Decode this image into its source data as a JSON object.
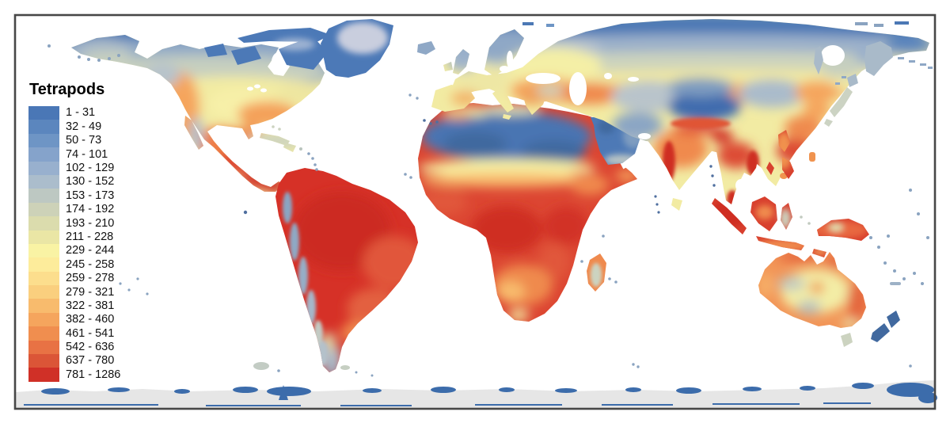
{
  "figure": {
    "title": "Tetrapods",
    "type": "choropleth world map of species richness",
    "ocean_color": "#FFFFFF",
    "frame_color": "#474747",
    "antarctica_color": "#E6E6E6"
  },
  "legend": {
    "title": "Tetrapods",
    "classes": [
      {
        "label": "1 - 31",
        "min": 1,
        "max": 31,
        "color": "#4A77B6"
      },
      {
        "label": "32 - 49",
        "min": 32,
        "max": 49,
        "color": "#5B86BE"
      },
      {
        "label": "50 - 73",
        "min": 50,
        "max": 73,
        "color": "#6E95C5"
      },
      {
        "label": "74 - 101",
        "min": 74,
        "max": 101,
        "color": "#85A3CB"
      },
      {
        "label": "102 - 129",
        "min": 102,
        "max": 129,
        "color": "#98B0CE"
      },
      {
        "label": "130 - 152",
        "min": 130,
        "max": 152,
        "color": "#ABBDCC"
      },
      {
        "label": "153 - 173",
        "min": 153,
        "max": 173,
        "color": "#BDC8C2"
      },
      {
        "label": "174 - 192",
        "min": 174,
        "max": 192,
        "color": "#CDD2B8"
      },
      {
        "label": "193 - 210",
        "min": 193,
        "max": 210,
        "color": "#DBDCAD"
      },
      {
        "label": "211 - 228",
        "min": 211,
        "max": 228,
        "color": "#EAE6A5"
      },
      {
        "label": "229 - 244",
        "min": 229,
        "max": 244,
        "color": "#F9F3A4"
      },
      {
        "label": "245 - 258",
        "min": 245,
        "max": 258,
        "color": "#FDEC9B"
      },
      {
        "label": "259 - 278",
        "min": 259,
        "max": 278,
        "color": "#FCDE8D"
      },
      {
        "label": "279 - 321",
        "min": 279,
        "max": 321,
        "color": "#FACF7E"
      },
      {
        "label": "322 - 381",
        "min": 322,
        "max": 381,
        "color": "#F8BB6D"
      },
      {
        "label": "382 - 460",
        "min": 382,
        "max": 460,
        "color": "#F5A55D"
      },
      {
        "label": "461 - 541",
        "min": 461,
        "max": 541,
        "color": "#F08E4F"
      },
      {
        "label": "542 - 636",
        "min": 542,
        "max": 636,
        "color": "#E87244"
      },
      {
        "label": "637 - 780",
        "min": 637,
        "max": 780,
        "color": "#DB5537"
      },
      {
        "label": "781 - 1286",
        "min": 781,
        "max": 1286,
        "color": "#D03027"
      }
    ]
  },
  "chart_data": {
    "type": "heatmap",
    "subtype": "choropleth_world_map",
    "title": "Tetrapods",
    "value_range": [
      1,
      1286
    ],
    "n_classes": 20,
    "class_breaks": [
      1,
      31,
      49,
      73,
      101,
      129,
      152,
      173,
      192,
      210,
      228,
      244,
      258,
      278,
      321,
      381,
      460,
      541,
      636,
      780,
      1286
    ],
    "palette_low_to_high": [
      "#4A77B6",
      "#5B86BE",
      "#6E95C5",
      "#85A3CB",
      "#98B0CE",
      "#ABBDCC",
      "#BDC8C2",
      "#CDD2B8",
      "#DBDCAD",
      "#EAE6A5",
      "#F9F3A4",
      "#FDEC9B",
      "#FCDE8D",
      "#FACF7E",
      "#F8BB6D",
      "#F5A55D",
      "#F08E4F",
      "#E87244",
      "#DB5537",
      "#D03027"
    ],
    "legend_position": "left",
    "visible_pattern": {
      "high_richness_regions": [
        "Amazon Basin",
        "Central Africa",
        "Southeast Asia",
        "Central America",
        "India / Indochina",
        "Sunda Islands"
      ],
      "low_richness_regions": [
        "Sahara",
        "Arabian Peninsula",
        "Tibetan Plateau",
        "High Arctic",
        "Greenland",
        "New Zealand",
        "Patagonia/Andes"
      ]
    }
  }
}
